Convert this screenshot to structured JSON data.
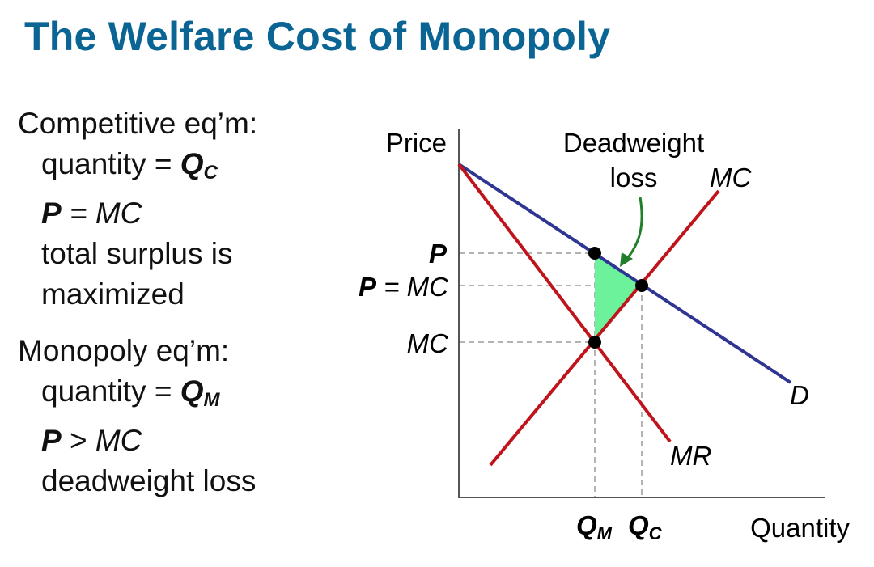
{
  "title": "The Welfare Cost of Monopoly",
  "competitive": {
    "heading": "Competitive eq’m:",
    "qty_label": "quantity = ",
    "qty_var": "Q",
    "qty_sub": "C",
    "price_p": "P",
    "price_rest": " = MC",
    "surplus_line1": "total surplus is",
    "surplus_line2": "maximized"
  },
  "monopoly": {
    "heading": "Monopoly eq’m:",
    "qty_label": "quantity = ",
    "qty_var": "Q",
    "qty_sub": "M",
    "price_p": "P",
    "price_gt": " > ",
    "price_mc": "MC",
    "dwl": "deadweight loss"
  },
  "diagram": {
    "y_axis_label": "Price",
    "x_axis_label": "Quantity",
    "curves": {
      "demand": {
        "label": "D",
        "color": "#2e3592"
      },
      "mc": {
        "label": "MC",
        "color": "#c0141c"
      },
      "mr": {
        "label": "MR",
        "color": "#c0141c"
      }
    },
    "price_ticks": {
      "p": "P",
      "p_eq_mc": "P = MC",
      "p_eq_mc_p": "P",
      "p_eq_mc_rest": " = MC",
      "mc": "MC"
    },
    "qty_ticks": {
      "qm_var": "Q",
      "qm_sub": "M",
      "qc_var": "Q",
      "qc_sub": "C"
    },
    "dwl_label_line1": "Deadweight",
    "dwl_label_line2": "loss",
    "dwl_fill": "#6cf29a",
    "arrow_color": "#1f7f2a",
    "point_color": "#000000"
  }
}
